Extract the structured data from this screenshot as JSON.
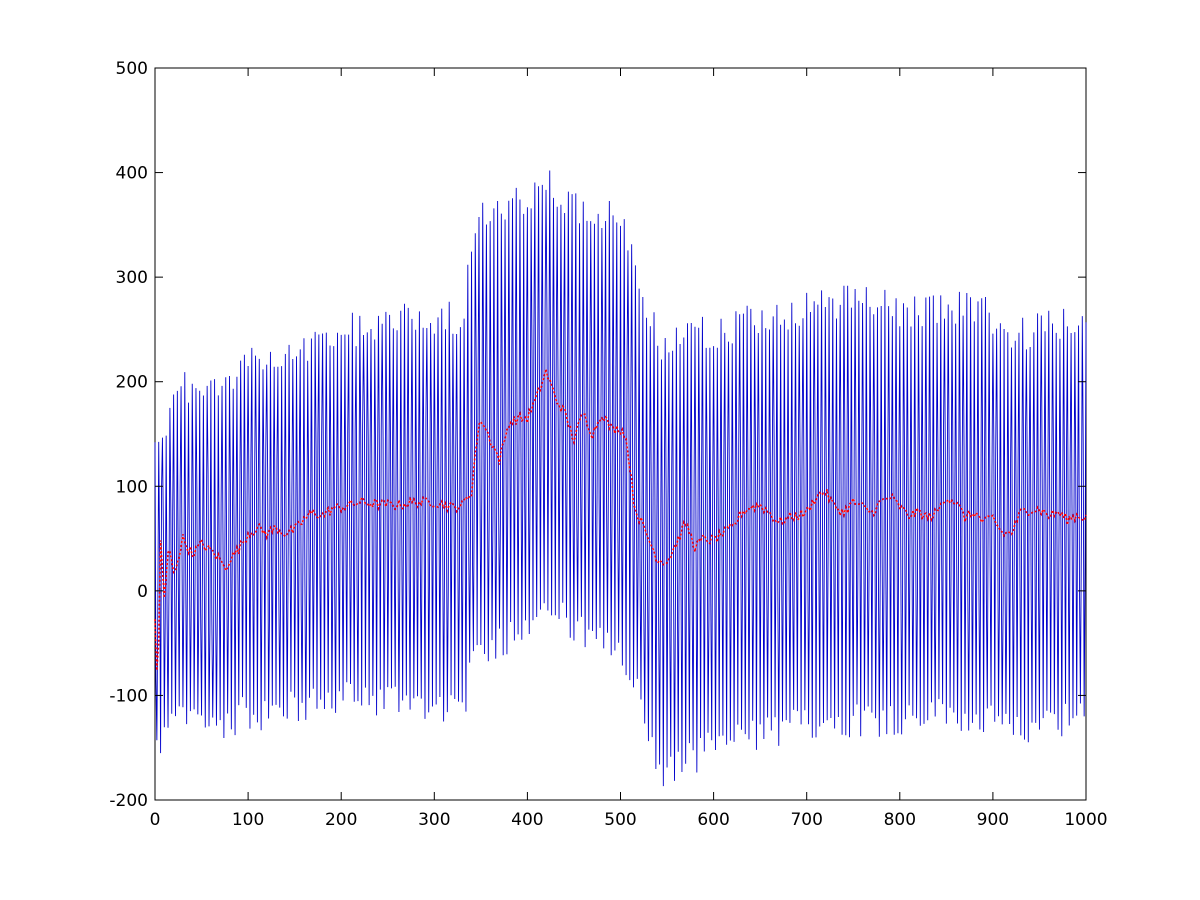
{
  "chart_data": {
    "type": "line",
    "title": "",
    "xlabel": "",
    "ylabel": "",
    "xlim": [
      0,
      1000
    ],
    "ylim": [
      -200,
      500
    ],
    "grid": false,
    "x_ticks": [
      0,
      100,
      200,
      300,
      400,
      500,
      600,
      700,
      800,
      900,
      1000
    ],
    "y_ticks": [
      -200,
      -100,
      0,
      100,
      200,
      300,
      400,
      500
    ],
    "series": [
      {
        "color": "#0000cc",
        "style": "solid",
        "description_points": [
          {
            "x": 3,
            "min": -165,
            "max": 165
          },
          {
            "x": 15,
            "min": -150,
            "max": 180
          },
          {
            "x": 30,
            "min": -140,
            "max": 215
          },
          {
            "x": 60,
            "min": -145,
            "max": 210
          },
          {
            "x": 100,
            "min": -135,
            "max": 235
          },
          {
            "x": 150,
            "min": -130,
            "max": 240
          },
          {
            "x": 200,
            "min": -120,
            "max": 265
          },
          {
            "x": 250,
            "min": -120,
            "max": 275
          },
          {
            "x": 300,
            "min": -125,
            "max": 280
          },
          {
            "x": 330,
            "min": -130,
            "max": 280
          },
          {
            "x": 345,
            "min": -80,
            "max": 370
          },
          {
            "x": 380,
            "min": -60,
            "max": 380
          },
          {
            "x": 420,
            "min": -30,
            "max": 410
          },
          {
            "x": 460,
            "min": -60,
            "max": 380
          },
          {
            "x": 500,
            "min": -80,
            "max": 370
          },
          {
            "x": 520,
            "min": -120,
            "max": 310
          },
          {
            "x": 545,
            "min": -195,
            "max": 250
          },
          {
            "x": 580,
            "min": -175,
            "max": 270
          },
          {
            "x": 600,
            "min": -165,
            "max": 265
          },
          {
            "x": 650,
            "min": -155,
            "max": 280
          },
          {
            "x": 700,
            "min": -145,
            "max": 285
          },
          {
            "x": 750,
            "min": -140,
            "max": 295
          },
          {
            "x": 800,
            "min": -140,
            "max": 285
          },
          {
            "x": 850,
            "min": -135,
            "max": 290
          },
          {
            "x": 900,
            "min": -145,
            "max": 280
          },
          {
            "x": 925,
            "min": -155,
            "max": 260
          },
          {
            "x": 950,
            "min": -140,
            "max": 270
          },
          {
            "x": 1000,
            "min": -140,
            "max": 270
          }
        ]
      },
      {
        "color": "#ff0000",
        "style": "dotted",
        "x": [
          0,
          3,
          6,
          10,
          15,
          20,
          30,
          40,
          50,
          60,
          70,
          75,
          80,
          90,
          100,
          110,
          120,
          130,
          140,
          150,
          160,
          170,
          180,
          190,
          200,
          210,
          220,
          240,
          260,
          280,
          300,
          320,
          330,
          340,
          345,
          350,
          360,
          370,
          380,
          390,
          400,
          410,
          420,
          430,
          440,
          450,
          460,
          470,
          480,
          490,
          500,
          505,
          510,
          515,
          520,
          530,
          540,
          550,
          560,
          570,
          580,
          590,
          600,
          610,
          620,
          630,
          640,
          650,
          660,
          670,
          680,
          690,
          700,
          710,
          720,
          730,
          740,
          750,
          760,
          770,
          780,
          790,
          800,
          810,
          820,
          830,
          840,
          850,
          860,
          870,
          880,
          890,
          900,
          910,
          920,
          930,
          940,
          950,
          960,
          970,
          980,
          990,
          1000
        ],
        "y": [
          -30,
          -100,
          50,
          -10,
          45,
          15,
          50,
          35,
          45,
          38,
          30,
          20,
          30,
          40,
          55,
          60,
          55,
          60,
          55,
          58,
          68,
          75,
          72,
          78,
          80,
          82,
          85,
          83,
          82,
          85,
          85,
          80,
          82,
          95,
          140,
          165,
          145,
          125,
          160,
          165,
          165,
          185,
          210,
          185,
          170,
          145,
          170,
          150,
          170,
          155,
          155,
          150,
          120,
          80,
          70,
          50,
          30,
          28,
          45,
          65,
          42,
          50,
          48,
          55,
          60,
          75,
          80,
          82,
          75,
          65,
          70,
          72,
          75,
          90,
          95,
          80,
          75,
          85,
          80,
          75,
          85,
          90,
          80,
          72,
          75,
          70,
          75,
          90,
          85,
          70,
          75,
          65,
          70,
          55,
          55,
          75,
          78,
          78,
          72,
          75,
          68,
          72,
          70
        ]
      }
    ]
  }
}
